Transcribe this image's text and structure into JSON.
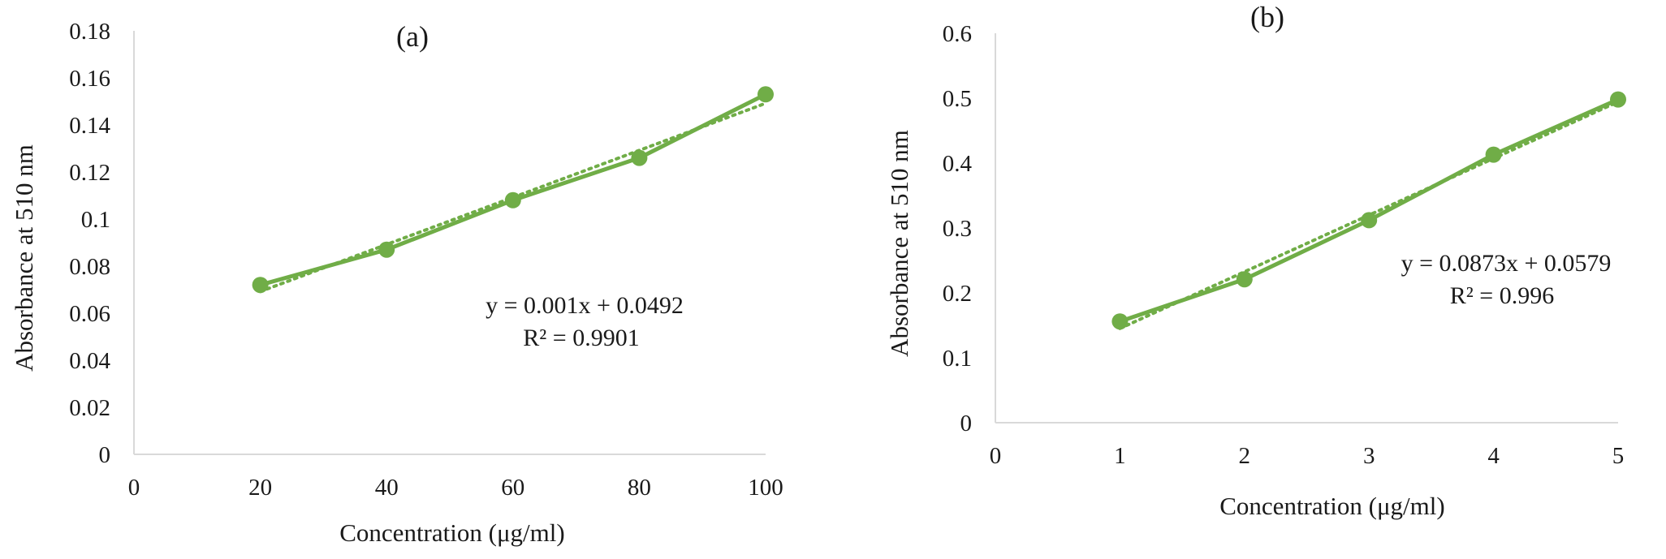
{
  "chart_data": [
    {
      "type": "line",
      "panel_label": "(a)",
      "xlabel": "Concentration (μg/ml)",
      "ylabel": "Absorbance at 510 nm",
      "xlim": [
        0,
        100
      ],
      "ylim": [
        0,
        0.18
      ],
      "x_ticks": [
        0,
        20,
        40,
        60,
        80,
        100
      ],
      "y_ticks": [
        0,
        0.02,
        0.04,
        0.06,
        0.08,
        0.1,
        0.12,
        0.14,
        0.16,
        0.18
      ],
      "x_tick_labels": [
        "0",
        "20",
        "40",
        "60",
        "80",
        "100"
      ],
      "y_tick_labels": [
        "0",
        "0.02",
        "0.04",
        "0.06",
        "0.08",
        "0.1",
        "0.12",
        "0.14",
        "0.16",
        "0.18"
      ],
      "series": [
        {
          "x": [
            20,
            40,
            60,
            80,
            100
          ],
          "values": [
            0.072,
            0.087,
            0.108,
            0.126,
            0.153
          ],
          "color": "#70ad47"
        }
      ],
      "trendline": {
        "slope": 0.001,
        "intercept": 0.0492,
        "style": "dotted",
        "color": "#70ad47"
      },
      "annotations": {
        "equation": "y = 0.001x + 0.0492",
        "r2": "R² = 0.9901"
      },
      "grid": false
    },
    {
      "type": "line",
      "panel_label": "(b)",
      "xlabel": "Concentration (μg/ml)",
      "ylabel": "Absorbance at 510 nm",
      "xlim": [
        0,
        5
      ],
      "ylim": [
        0,
        0.6
      ],
      "x_ticks": [
        0,
        1,
        2,
        3,
        4,
        5
      ],
      "y_ticks": [
        0,
        0.1,
        0.2,
        0.3,
        0.4,
        0.5,
        0.6
      ],
      "x_tick_labels": [
        "0",
        "1",
        "2",
        "3",
        "4",
        "5"
      ],
      "y_tick_labels": [
        "0",
        "0.1",
        "0.2",
        "0.3",
        "0.4",
        "0.5",
        "0.6"
      ],
      "series": [
        {
          "x": [
            1,
            2,
            3,
            4,
            5
          ],
          "values": [
            0.156,
            0.221,
            0.312,
            0.413,
            0.498
          ],
          "color": "#70ad47"
        }
      ],
      "trendline": {
        "slope": 0.0873,
        "intercept": 0.0579,
        "style": "dotted",
        "color": "#70ad47"
      },
      "annotations": {
        "equation": "y = 0.0873x + 0.0579",
        "r2": "R² = 0.996"
      },
      "grid": false
    }
  ]
}
